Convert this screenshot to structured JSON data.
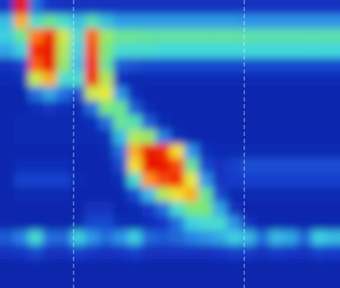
{
  "chart_data": {
    "type": "heatmap",
    "tick_labels": false,
    "zlim": [
      0,
      150
    ],
    "cells": [
      [
        15,
        140,
        30,
        15,
        12,
        12,
        12,
        12,
        12,
        12,
        12,
        12,
        12,
        12,
        12,
        12,
        12,
        12,
        12,
        12,
        12,
        12,
        12,
        12
      ],
      [
        50,
        110,
        60,
        70,
        60,
        50,
        65,
        50,
        42,
        42,
        42,
        42,
        42,
        42,
        42,
        42,
        42,
        40,
        40,
        40,
        40,
        40,
        40,
        40
      ],
      [
        55,
        70,
        120,
        135,
        90,
        60,
        125,
        80,
        70,
        70,
        68,
        68,
        68,
        68,
        68,
        68,
        68,
        66,
        66,
        66,
        66,
        66,
        66,
        66
      ],
      [
        45,
        55,
        135,
        140,
        85,
        55,
        130,
        75,
        60,
        60,
        60,
        58,
        58,
        58,
        58,
        58,
        58,
        58,
        58,
        58,
        58,
        58,
        58,
        58
      ],
      [
        12,
        18,
        125,
        140,
        80,
        50,
        135,
        70,
        25,
        22,
        20,
        20,
        20,
        20,
        20,
        20,
        20,
        20,
        20,
        20,
        20,
        20,
        20,
        20
      ],
      [
        8,
        10,
        90,
        110,
        60,
        60,
        135,
        85,
        10,
        8,
        8,
        8,
        8,
        8,
        8,
        8,
        8,
        8,
        8,
        8,
        8,
        8,
        8,
        8
      ],
      [
        6,
        6,
        30,
        45,
        30,
        20,
        90,
        95,
        40,
        10,
        6,
        6,
        6,
        6,
        6,
        6,
        6,
        6,
        6,
        6,
        6,
        6,
        6,
        6
      ],
      [
        6,
        6,
        10,
        12,
        10,
        8,
        30,
        75,
        70,
        25,
        8,
        6,
        6,
        6,
        6,
        6,
        6,
        6,
        6,
        6,
        6,
        6,
        6,
        6
      ],
      [
        6,
        8,
        8,
        8,
        8,
        8,
        10,
        30,
        70,
        65,
        25,
        8,
        6,
        6,
        6,
        6,
        6,
        6,
        6,
        6,
        6,
        6,
        6,
        6
      ],
      [
        6,
        8,
        8,
        8,
        8,
        8,
        8,
        10,
        50,
        85,
        80,
        35,
        10,
        6,
        6,
        6,
        6,
        6,
        6,
        6,
        6,
        6,
        6,
        6
      ],
      [
        6,
        6,
        6,
        6,
        6,
        6,
        6,
        8,
        30,
        110,
        140,
        135,
        100,
        40,
        10,
        8,
        8,
        8,
        8,
        8,
        8,
        8,
        8,
        8
      ],
      [
        6,
        10,
        10,
        10,
        10,
        6,
        6,
        6,
        20,
        100,
        140,
        140,
        130,
        70,
        20,
        12,
        18,
        22,
        22,
        22,
        22,
        22,
        22,
        22
      ],
      [
        6,
        18,
        18,
        18,
        18,
        8,
        6,
        6,
        10,
        60,
        115,
        130,
        135,
        95,
        40,
        12,
        16,
        18,
        18,
        18,
        18,
        18,
        18,
        18
      ],
      [
        6,
        8,
        8,
        8,
        8,
        6,
        6,
        6,
        6,
        20,
        50,
        85,
        100,
        110,
        70,
        20,
        8,
        8,
        8,
        8,
        8,
        8,
        8,
        8
      ],
      [
        5,
        5,
        5,
        5,
        5,
        5,
        12,
        12,
        6,
        8,
        15,
        30,
        60,
        75,
        75,
        45,
        12,
        5,
        5,
        5,
        5,
        5,
        5,
        5
      ],
      [
        6,
        6,
        6,
        6,
        6,
        8,
        20,
        20,
        10,
        8,
        10,
        15,
        30,
        55,
        60,
        60,
        40,
        12,
        6,
        6,
        6,
        6,
        6,
        6
      ],
      [
        25,
        35,
        60,
        30,
        28,
        55,
        40,
        30,
        40,
        55,
        28,
        25,
        28,
        35,
        40,
        45,
        55,
        50,
        30,
        50,
        45,
        28,
        55,
        50
      ],
      [
        12,
        14,
        20,
        12,
        12,
        18,
        14,
        12,
        14,
        18,
        12,
        12,
        12,
        12,
        12,
        14,
        18,
        16,
        12,
        16,
        14,
        12,
        18,
        16
      ],
      [
        5,
        5,
        5,
        5,
        5,
        5,
        5,
        5,
        5,
        5,
        5,
        5,
        5,
        5,
        5,
        5,
        5,
        5,
        5,
        5,
        5,
        5,
        5,
        5
      ],
      [
        5,
        5,
        5,
        5,
        5,
        5,
        5,
        5,
        5,
        5,
        5,
        5,
        5,
        5,
        5,
        5,
        5,
        5,
        5,
        5,
        5,
        5,
        5,
        5
      ]
    ]
  }
}
